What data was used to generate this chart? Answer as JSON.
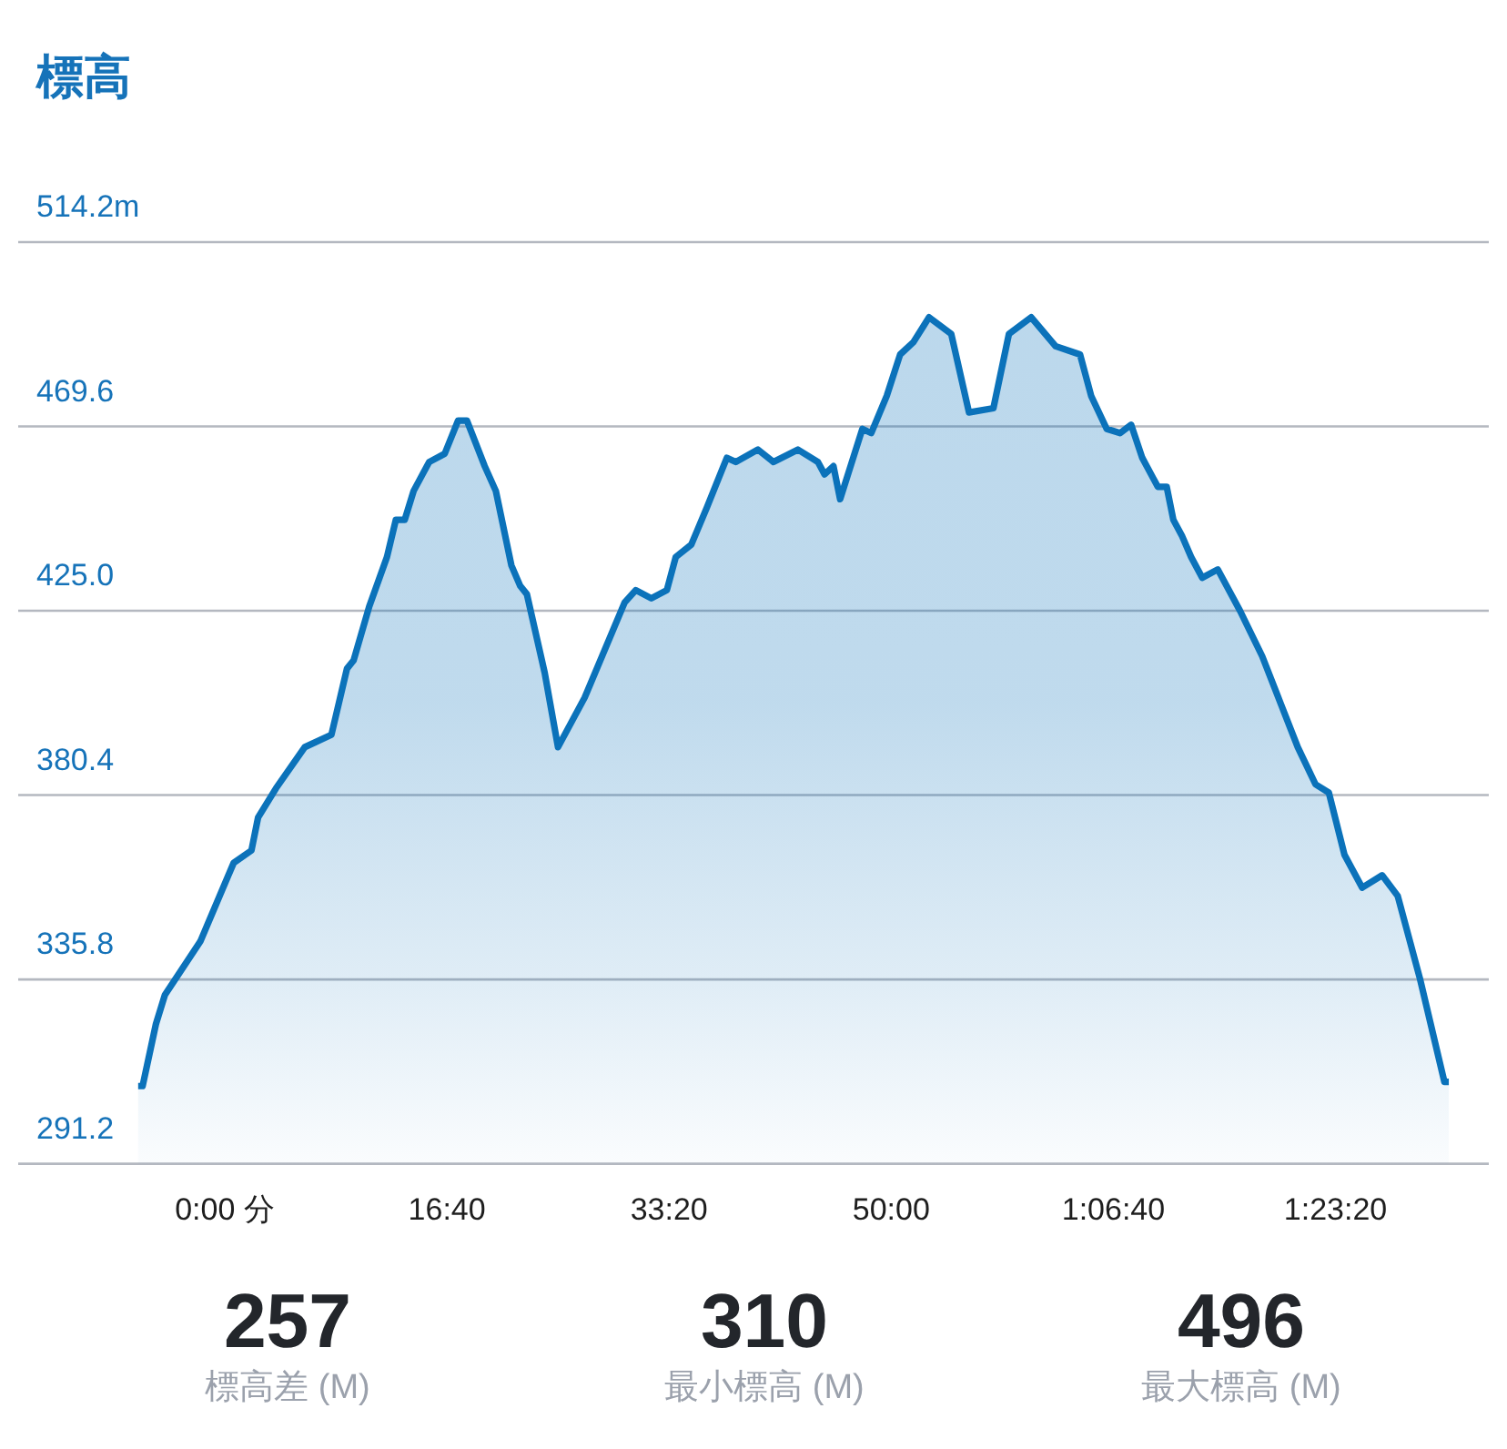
{
  "chart_data": {
    "type": "area",
    "title": "標高",
    "color": "#0b72ba",
    "grid": "y",
    "marker": "none",
    "line_style": "solid",
    "x": [
      -390,
      -370,
      -310,
      -270,
      -110,
      40,
      120,
      150,
      230,
      360,
      480,
      550,
      580,
      650,
      730,
      770,
      810,
      850,
      920,
      990,
      1050,
      1090,
      1170,
      1220,
      1290,
      1330,
      1360,
      1440,
      1500,
      1620,
      1800,
      1850,
      1920,
      1990,
      2030,
      2100,
      2170,
      2260,
      2300,
      2400,
      2470,
      2580,
      2670,
      2700,
      2740,
      2770,
      2870,
      2910,
      2980,
      3040,
      3100,
      3170,
      3270,
      3350,
      3460,
      3530,
      3630,
      3740,
      3850,
      3900,
      3970,
      4030,
      4080,
      4130,
      4200,
      4240,
      4270,
      4310,
      4350,
      4400,
      4470,
      4570,
      4670,
      4750,
      4830,
      4910,
      4970,
      5040,
      5120,
      5210,
      5280,
      5380,
      5490,
      5510
    ],
    "values": [
      310,
      310,
      325,
      332,
      345,
      364,
      367,
      375,
      382,
      392,
      395,
      411,
      413,
      426,
      438,
      447,
      447,
      454,
      461,
      463,
      471,
      471,
      460,
      454,
      436,
      431,
      429,
      410,
      392,
      404,
      427,
      430,
      428,
      430,
      438,
      441,
      450,
      462,
      461,
      464,
      461,
      464,
      461,
      458,
      460,
      452,
      469,
      468,
      477,
      487,
      490,
      496,
      492,
      473,
      474,
      492,
      496,
      489,
      487,
      477,
      469,
      468,
      470,
      462,
      455,
      455,
      447,
      443,
      438,
      433,
      435,
      425,
      414,
      403,
      392,
      383,
      381,
      366,
      358,
      361,
      356,
      336,
      311,
      311
    ],
    "xlim": [
      -930,
      5690
    ],
    "xticks": [
      {
        "value": 0,
        "label": "0:00 分"
      },
      {
        "value": 1000,
        "label": "16:40"
      },
      {
        "value": 2000,
        "label": "33:20"
      },
      {
        "value": 3000,
        "label": "50:00"
      },
      {
        "value": 4000,
        "label": "1:06:40"
      },
      {
        "value": 5000,
        "label": "1:23:20"
      }
    ],
    "ylim": [
      291.2,
      514.2
    ],
    "yticks": [
      {
        "value": 514.2,
        "label": "514.2m"
      },
      469.6,
      {
        "value": 425,
        "label": "425.0"
      },
      380.4,
      335.8,
      291.2
    ],
    "annotations": [
      "257",
      "標高差 (M)",
      "310",
      "最小標高 (M)",
      "496",
      "最大標高 (M)"
    ]
  }
}
